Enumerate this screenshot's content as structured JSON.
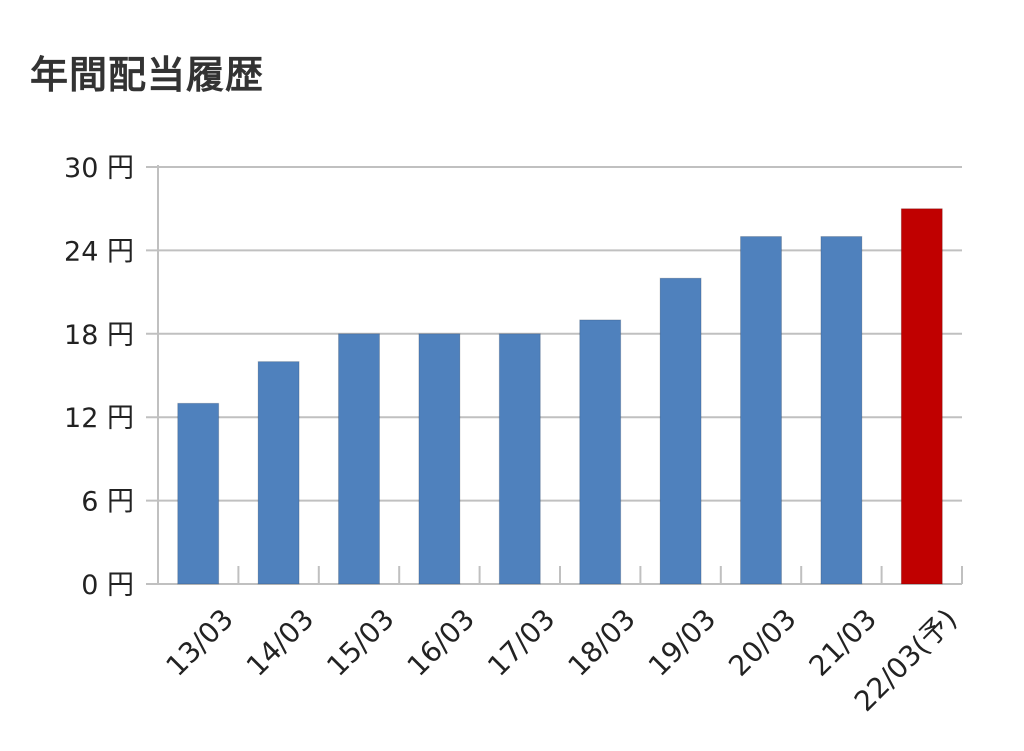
{
  "title": "年間配当履歴",
  "chart_data": {
    "type": "bar",
    "title": "年間配当履歴",
    "xlabel": "",
    "ylabel": "",
    "categories": [
      "13/03",
      "14/03",
      "15/03",
      "16/03",
      "17/03",
      "18/03",
      "19/03",
      "20/03",
      "21/03",
      "22/03(予)"
    ],
    "values": [
      13,
      16,
      18,
      18,
      18,
      19,
      22,
      25,
      25,
      27
    ],
    "ylim": [
      0,
      30
    ],
    "yticks": [
      0,
      6,
      12,
      18,
      24,
      30
    ],
    "ytick_labels": [
      "0 円",
      "6 円",
      "12 円",
      "18 円",
      "24 円",
      "30 円"
    ],
    "grid": true,
    "bar_color": "#4f81bd",
    "highlight_color": "#c00000",
    "highlight_index": 9,
    "gridline_color": "#c0c0c0",
    "text_color": "#222222"
  }
}
